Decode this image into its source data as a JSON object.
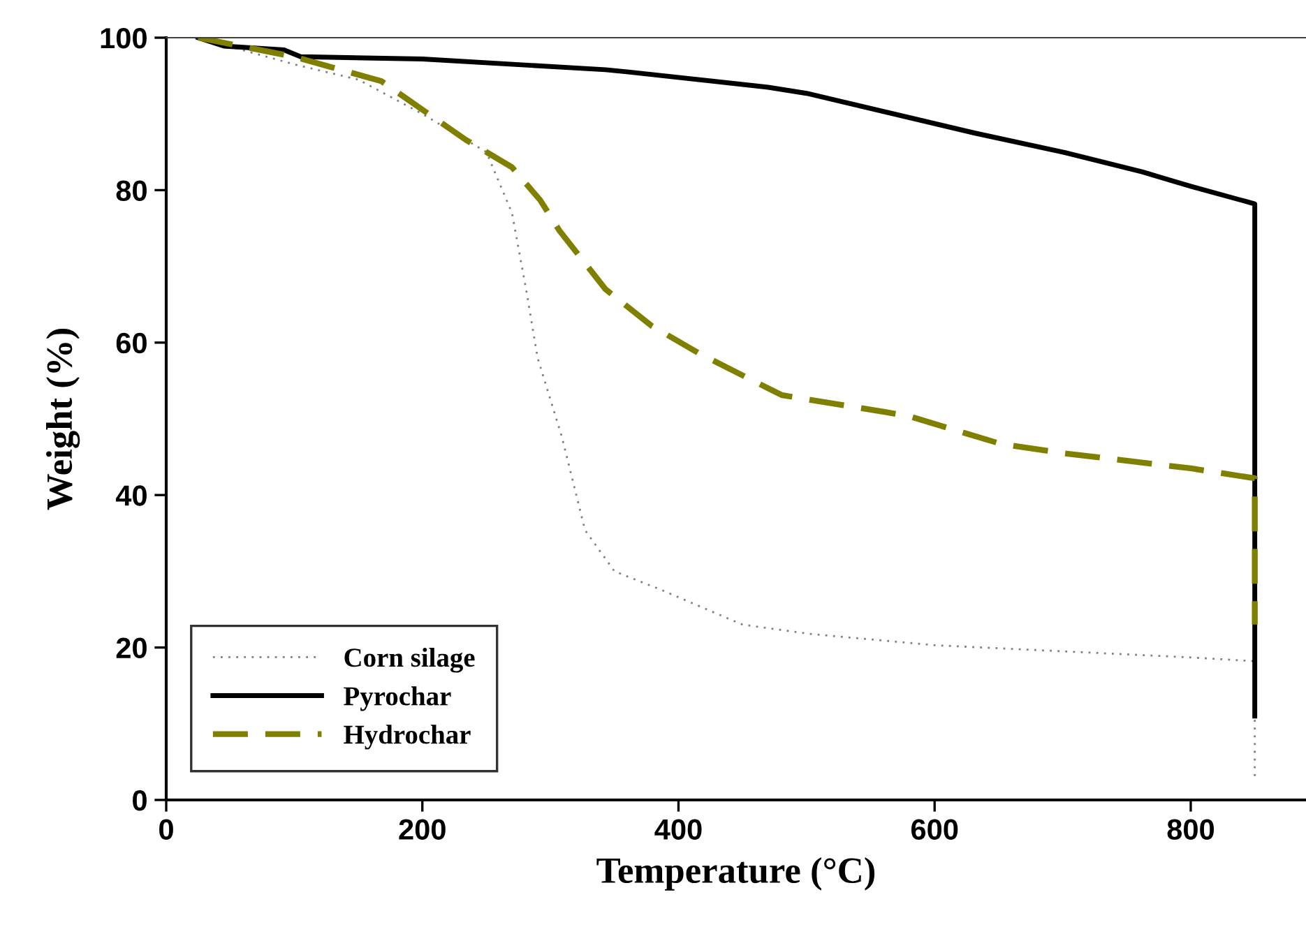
{
  "chart_data": {
    "type": "line",
    "xlabel": "Temperature (°C)",
    "ylabel": "Weight (%)",
    "xlim": [
      0,
      890
    ],
    "ylim": [
      0,
      100
    ],
    "xticks": [
      0,
      200,
      400,
      600,
      800
    ],
    "yticks": [
      0,
      20,
      40,
      60,
      80,
      100
    ],
    "grid": false,
    "legend": "bottom left",
    "series": [
      {
        "name": "Corn silage",
        "color": "#808080",
        "line_style": "dotted",
        "x": [
          25,
          100,
          150,
          200,
          250,
          260,
          270,
          281,
          290,
          309,
          327,
          350,
          386,
          450,
          502,
          600,
          700,
          800,
          850,
          850
        ],
        "values": [
          100,
          96.5,
          94.5,
          90,
          85,
          81,
          77,
          67,
          58,
          47.6,
          35.4,
          30,
          27.6,
          23,
          21.8,
          20.3,
          19.5,
          18.7,
          18.2,
          3
        ]
      },
      {
        "name": "Pyrochar",
        "color": "#000000",
        "line_style": "solid",
        "x": [
          25,
          45,
          92,
          105,
          200,
          343,
          361,
          470,
          500,
          631,
          700,
          762,
          800,
          850,
          850
        ],
        "values": [
          100,
          98.9,
          98.4,
          97.5,
          97.2,
          95.8,
          95.5,
          93.5,
          92.7,
          87.5,
          85,
          82.4,
          80.5,
          78.2,
          11
        ]
      },
      {
        "name": "Hydrochar",
        "color": "#808000",
        "line_style": "dashed",
        "x": [
          25,
          100,
          168,
          234,
          270,
          292,
          307,
          343,
          379,
          416,
          470,
          481,
          579,
          652,
          700,
          800,
          850,
          850
        ],
        "values": [
          100,
          97.5,
          94.3,
          86.6,
          83,
          78.7,
          74.7,
          67,
          62.2,
          58.6,
          54,
          53.1,
          50.4,
          46.7,
          45.5,
          43.5,
          42.2,
          23
        ]
      }
    ]
  }
}
